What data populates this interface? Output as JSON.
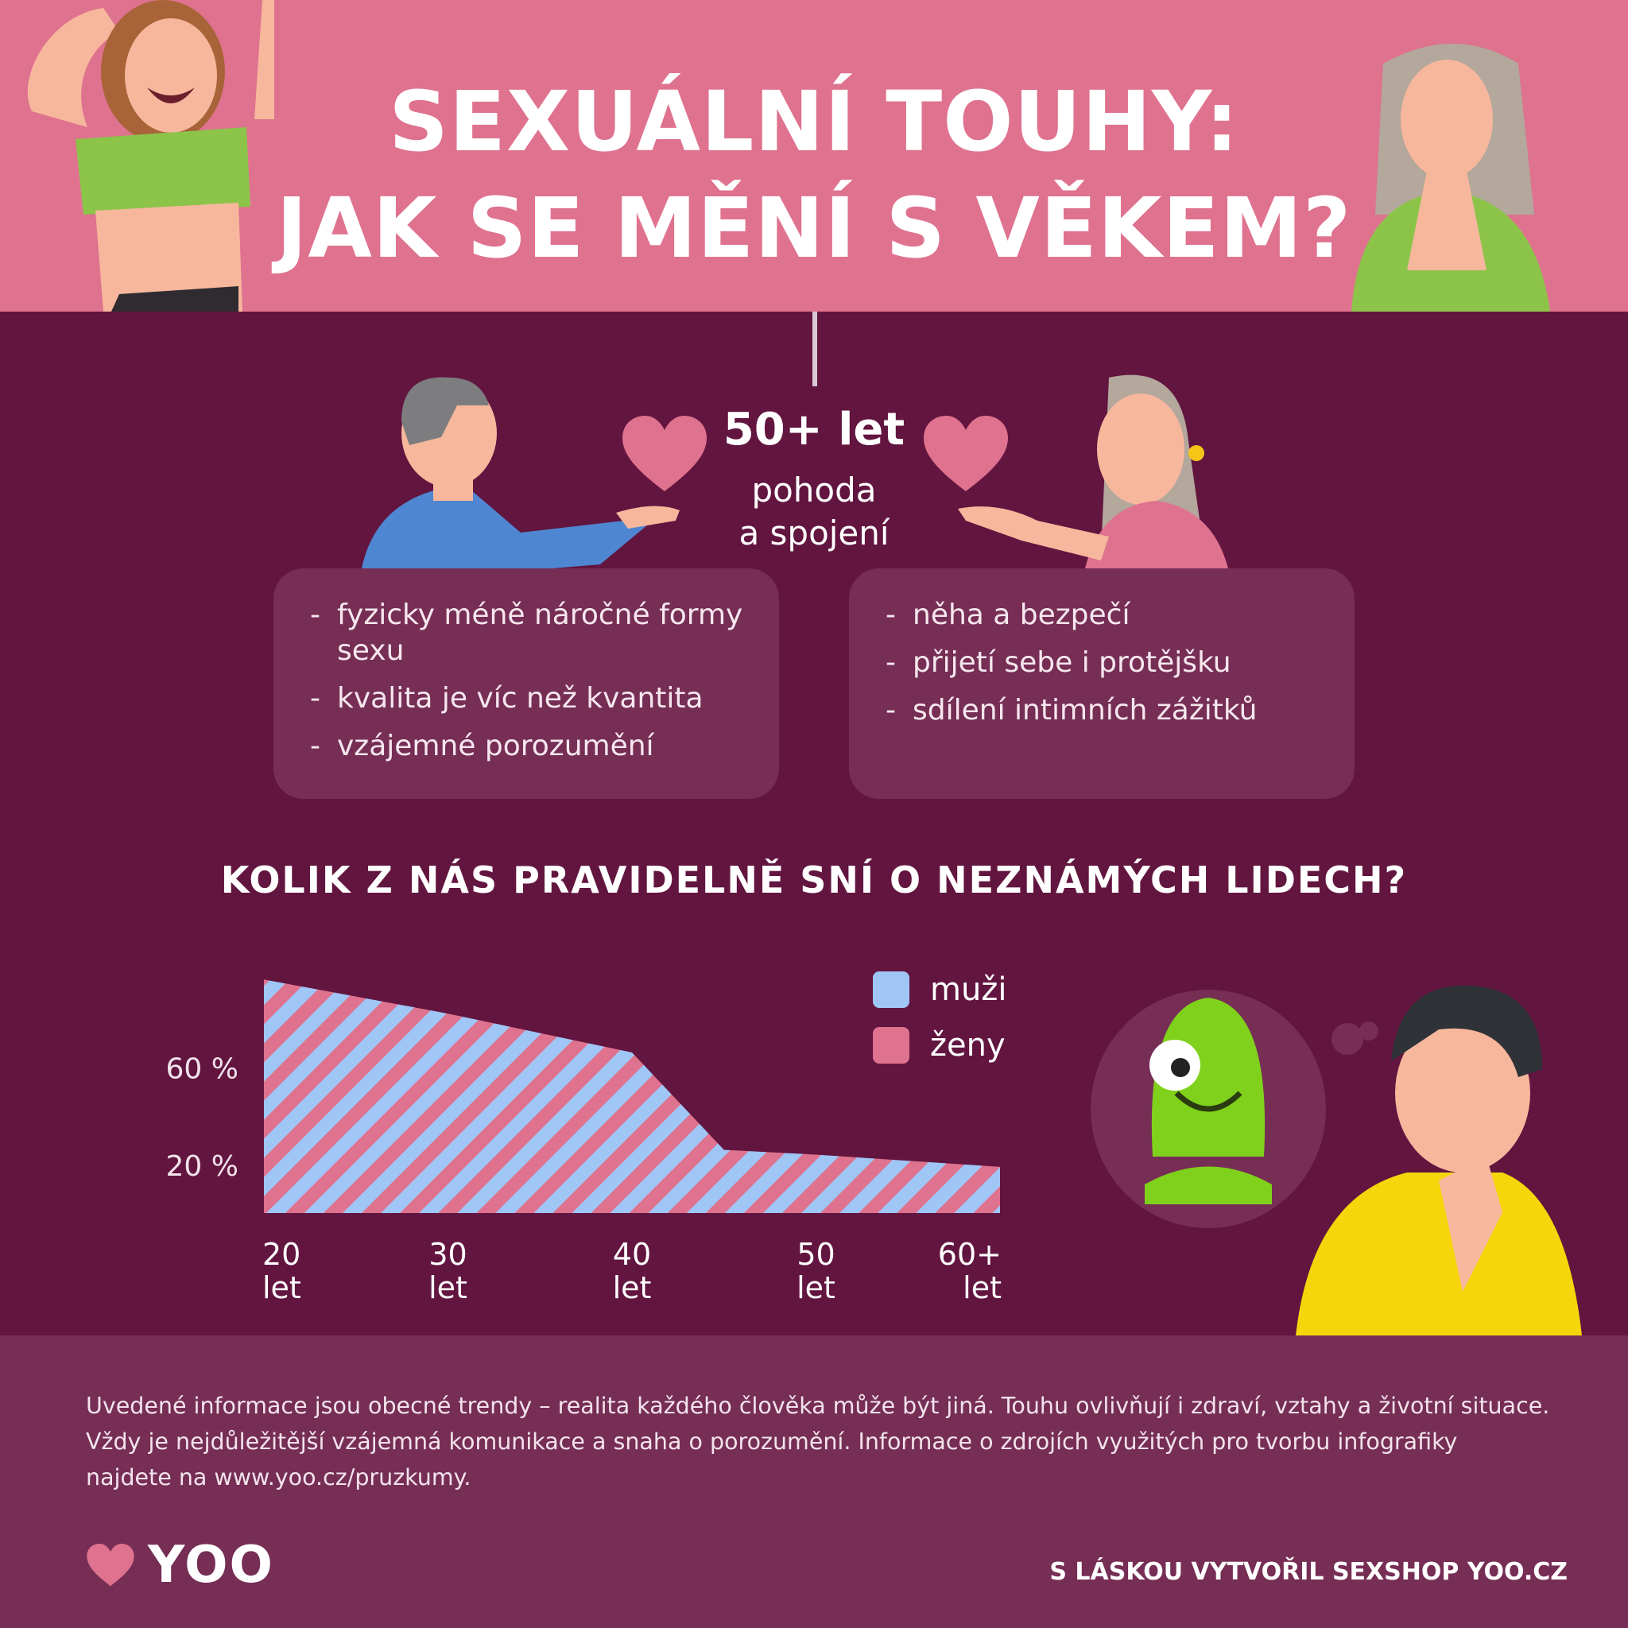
{
  "header": {
    "title_line1": "SEXUÁLNÍ TOUHY:",
    "title_line2": "JAK SE MĚNÍ S VĚKEM?"
  },
  "age_group": {
    "heading": "50+ let",
    "sub_line1": "pohoda",
    "sub_line2": "a spojení",
    "left_items": [
      "fyzicky méně náročné formy sexu",
      "kvalita je víc než kvantita",
      "vzájemné porozumění"
    ],
    "right_items": [
      "něha a bezpečí",
      "přijetí sebe i protějšku",
      "sdílení intimních zážitků"
    ]
  },
  "chart_data": {
    "type": "area",
    "title": "KOLIK Z NÁS PRAVIDELNĚ SNÍ O NEZNÁMÝCH LIDECH?",
    "x": [
      20,
      30,
      40,
      45,
      50,
      60
    ],
    "x_tick_labels": [
      [
        "20",
        "let"
      ],
      [
        "30",
        "let"
      ],
      [
        "40",
        "let"
      ],
      [
        "50",
        "let"
      ],
      [
        "60+",
        "let"
      ]
    ],
    "x_tick_values": [
      20,
      30,
      40,
      50,
      60
    ],
    "y_tick_labels": [
      "60 %",
      "20 %"
    ],
    "y_tick_values": [
      60,
      20
    ],
    "series": [
      {
        "name": "muži",
        "color": "#9fc6f5",
        "values": [
          96,
          82,
          66,
          26,
          24,
          19
        ]
      },
      {
        "name": "ženy",
        "color": "#df728f",
        "values": [
          96,
          82,
          66,
          26,
          24,
          19
        ]
      }
    ],
    "ylim": [
      0,
      100
    ],
    "legend_position": "top-right"
  },
  "footer": {
    "note_line1": "Uvedené informace jsou obecné trendy – realita každého člověka může být jiná. Touhu ovlivňují i zdraví, vztahy a životní situace.",
    "note_line2": "Vždy je nejdůležitější vzájemná komunikace a snaha o porozumění. Informace o zdrojích využitých pro tvorbu infografiky",
    "note_line3": "najdete na www.yoo.cz/pruzkumy.",
    "logo_text": "YOO",
    "credit": "S LÁSKOU VYTVOŘIL SEXSHOP YOO.CZ"
  },
  "colors": {
    "header_bg": "#df728f",
    "main_bg": "#62153f",
    "card_bg": "#762e55",
    "men": "#9fc6f5",
    "women": "#df728f"
  },
  "icons": [
    "heart-icon",
    "heart-logo-icon"
  ]
}
